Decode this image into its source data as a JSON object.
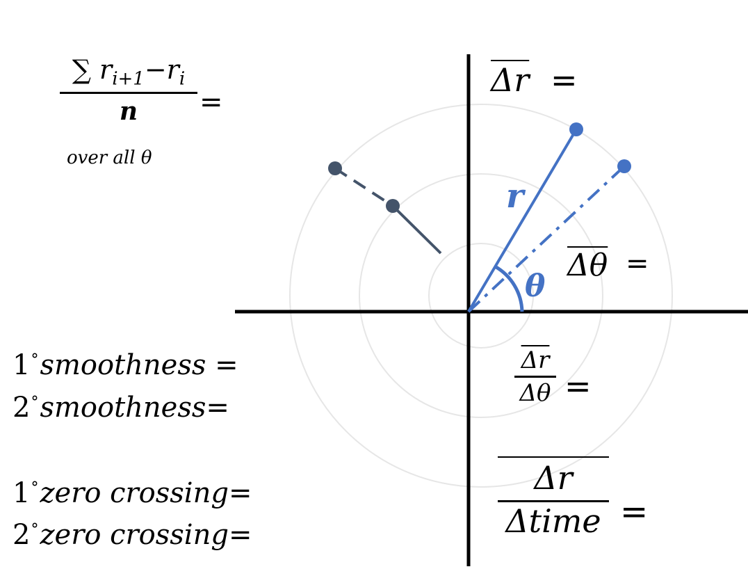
{
  "colors": {
    "axis": "#000000",
    "grid_circle": "#e6e6e6",
    "blue": "#4472c4",
    "slate": "#44546a"
  },
  "diagram": {
    "r_label": "r",
    "theta_label": "θ"
  },
  "formulas": {
    "sum_numerator": "∑ r",
    "sum_sub_i1": "i+1",
    "sum_minus": "−r",
    "sum_sub_i": "i",
    "sum_den": "n",
    "sum_eq": "=",
    "sum_note": "over all θ",
    "delta_r": "Δr",
    "delta_r_eq": "=",
    "delta_theta": "Δθ",
    "delta_theta_eq": "=",
    "ratio_num": "Δr",
    "ratio_den": "Δθ",
    "ratio_eq": "=",
    "time_num": "Δr",
    "time_den": "Δtime",
    "time_eq": "="
  },
  "labels": {
    "smooth1_deg": "1",
    "smooth1_text": "smoothness",
    "smooth1_eq": " =",
    "smooth2_deg": "2",
    "smooth2_text": "smoothness",
    "smooth2_eq": "=",
    "zero1_deg": "1",
    "zero1_text": "zero crossing",
    "zero1_eq": "=",
    "zero2_deg": "2",
    "zero2_text": "zero crossing",
    "zero2_eq": "="
  }
}
